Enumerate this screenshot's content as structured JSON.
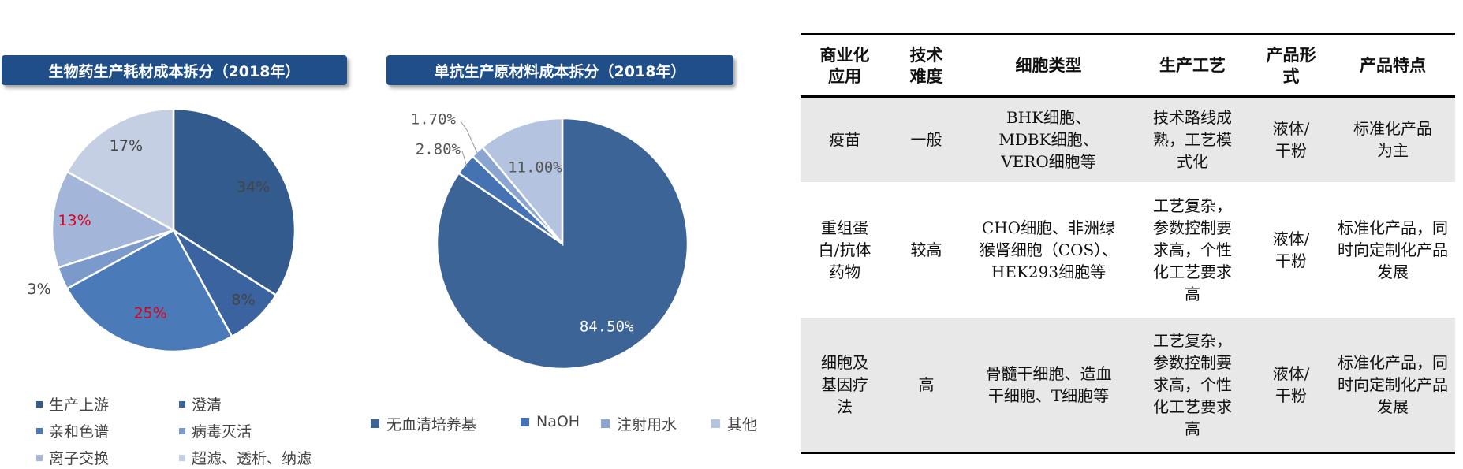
{
  "colors": {
    "banner": "#1f4e89",
    "highlight_label": "#e0001b"
  },
  "chart_data": [
    {
      "type": "pie",
      "title": "生物药生产耗材成本拆分（2018年）",
      "slices": [
        {
          "label": "生产上游",
          "value": 34,
          "display": "34%",
          "color": "#335b8e",
          "label_color": "#444444"
        },
        {
          "label": "澄清",
          "value": 8,
          "display": "8%",
          "color": "#3a63a0",
          "label_color": "#444444"
        },
        {
          "label": "亲和色谱",
          "value": 25,
          "display": "25%",
          "color": "#4a7ab8",
          "label_color": "#e0001b"
        },
        {
          "label": "病毒灭活",
          "value": 3,
          "display": "3%",
          "color": "#7b9acb",
          "label_color": "#444444"
        },
        {
          "label": "离子交换",
          "value": 13,
          "display": "13%",
          "color": "#a3b5d8",
          "label_color": "#e0001b"
        },
        {
          "label": "超滤、透析、纳滤",
          "value": 17,
          "display": "17%",
          "color": "#c5cfe4",
          "label_color": "#444444"
        }
      ],
      "legend_position": "bottom"
    },
    {
      "type": "pie",
      "title": "单抗生产原材料成本拆分（2018年）",
      "slices": [
        {
          "label": "无血清培养基",
          "value": 84.5,
          "display": "84.50%",
          "color": "#3c6497",
          "label_color": "#ffffff"
        },
        {
          "label": "NaOH",
          "value": 2.8,
          "display": "2.80%",
          "color": "#4472b2",
          "label_color": "#555555"
        },
        {
          "label": "注射用水",
          "value": 1.7,
          "display": "1.70%",
          "color": "#8aa6d0",
          "label_color": "#555555"
        },
        {
          "label": "其他",
          "value": 11.0,
          "display": "11.00%",
          "color": "#b4c3df",
          "label_color": "#555555"
        }
      ],
      "legend_position": "bottom"
    },
    {
      "type": "table",
      "headers": [
        "商业化应用",
        "技术难度",
        "细胞类型",
        "生产工艺",
        "产品形式",
        "产品特点"
      ],
      "rows": [
        [
          "疫苗",
          "一般",
          "BHK细胞、MDBK细胞、VERO细胞等",
          "技术路线成熟，工艺模式化",
          "液体/干粉",
          "标准化产品为主"
        ],
        [
          "重组蛋白/抗体药物",
          "较高",
          "CHO细胞、非洲绿猴肾细胞（COS）、HEK293细胞等",
          "工艺复杂，参数控制要求高，个性化工艺要求高",
          "液体/干粉",
          "标准化产品，同时向定制化产品发展"
        ],
        [
          "细胞及基因疗法",
          "高",
          "骨髓干细胞、造血干细胞、T细胞等",
          "工艺复杂，参数控制要求高，个性化工艺要求高",
          "液体/干粉",
          "标准化产品，同时向定制化产品发展"
        ]
      ]
    }
  ]
}
